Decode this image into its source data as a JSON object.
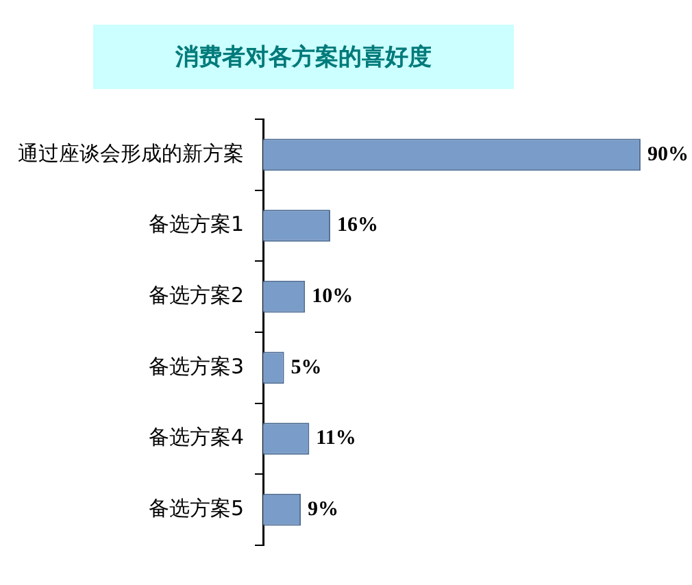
{
  "chart_data": {
    "type": "bar",
    "orientation": "horizontal",
    "title": "消费者对各方案的喜好度",
    "categories": [
      "通过座谈会形成的新方案",
      "备选方案1",
      "备选方案2",
      "备选方案3",
      "备选方案4",
      "备选方案5"
    ],
    "values": [
      90,
      16,
      10,
      5,
      11,
      9
    ],
    "color": "#7a9cc8",
    "value_labels": [
      "90%",
      "16%",
      "10%",
      "5%",
      "11%",
      "9%"
    ],
    "grid": false,
    "legend": false,
    "tick_labels": "y"
  }
}
